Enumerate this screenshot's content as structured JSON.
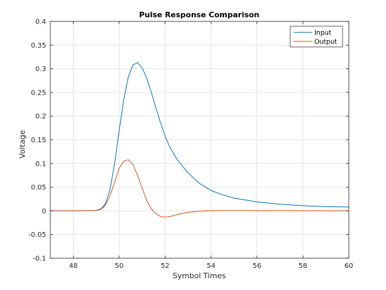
{
  "chart_data": {
    "type": "line",
    "title": "Pulse Response Comparison",
    "xlabel": "Symbol Times",
    "ylabel": "Voltage",
    "xlim": [
      47,
      60
    ],
    "ylim": [
      -0.1,
      0.4
    ],
    "xticks": [
      48,
      50,
      52,
      54,
      56,
      58,
      60
    ],
    "yticks": [
      -0.1,
      -0.05,
      0,
      0.05,
      0.1,
      0.15,
      0.2,
      0.25,
      0.3,
      0.35,
      0.4
    ],
    "grid": true,
    "legend_position": "top-right",
    "series": [
      {
        "name": "Input",
        "color": "#0072BD",
        "x": [
          47,
          48,
          49,
          49.2,
          49.4,
          49.6,
          49.8,
          50.0,
          50.2,
          50.4,
          50.6,
          50.8,
          51.0,
          51.2,
          51.4,
          51.6,
          51.8,
          52.0,
          52.2,
          52.5,
          53.0,
          53.5,
          54.0,
          54.5,
          55.0,
          56.0,
          57.0,
          58.0,
          59.0,
          60.0
        ],
        "values": [
          0,
          0,
          0.001,
          0.004,
          0.015,
          0.045,
          0.1,
          0.17,
          0.235,
          0.283,
          0.308,
          0.313,
          0.302,
          0.28,
          0.25,
          0.217,
          0.186,
          0.158,
          0.135,
          0.11,
          0.08,
          0.058,
          0.043,
          0.034,
          0.027,
          0.019,
          0.014,
          0.011,
          0.009,
          0.008
        ]
      },
      {
        "name": "Output",
        "color": "#D95319",
        "x": [
          47,
          48,
          49,
          49.2,
          49.4,
          49.6,
          49.8,
          50.0,
          50.2,
          50.4,
          50.6,
          50.8,
          51.0,
          51.2,
          51.4,
          51.6,
          51.8,
          52.0,
          52.2,
          52.5,
          53.0,
          53.5,
          54.0,
          55.0,
          56.0,
          57.0,
          58.0,
          59.0,
          60.0
        ],
        "values": [
          0,
          0,
          0.0005,
          0.003,
          0.012,
          0.032,
          0.06,
          0.09,
          0.105,
          0.108,
          0.098,
          0.075,
          0.048,
          0.022,
          0.004,
          -0.006,
          -0.012,
          -0.013,
          -0.012,
          -0.008,
          -0.003,
          -0.0005,
          0.0005,
          0.0008,
          0.0006,
          0.0005,
          0.0004,
          0.0003,
          0.0002
        ]
      }
    ]
  }
}
